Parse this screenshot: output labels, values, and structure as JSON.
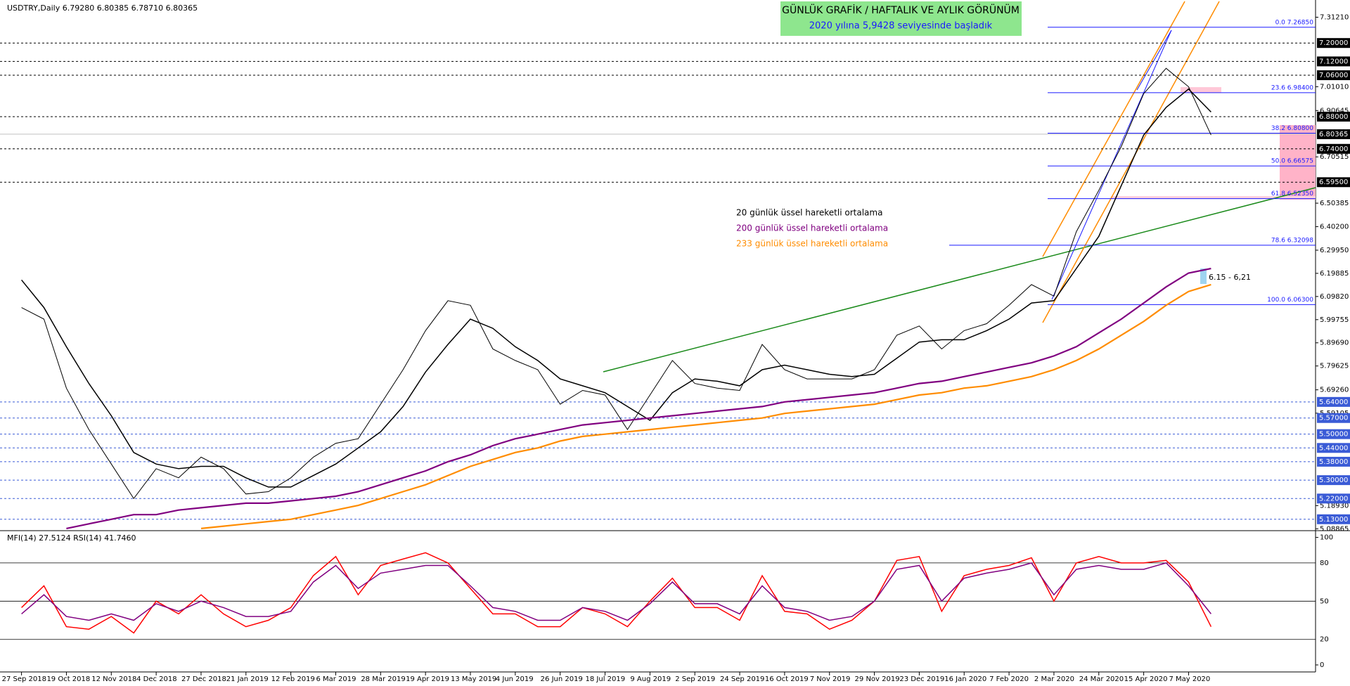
{
  "chart_data": [
    {
      "type": "line",
      "header": "USDTRY,Daily  6.79280 6.80385 6.78710 6.80365",
      "title": "GÜNLÜK GRAFİK / HAFTALIK VE AYLIK GÖRÜNÜM",
      "subtitle": "2020 yılına 5,9428 seviyesinde başladık",
      "annotation": "6.15 - 6,21",
      "categories": [
        "27 Sep 2018",
        null,
        "19 Oct 2018",
        null,
        "12 Nov 2018",
        null,
        "4 Dec 2018",
        null,
        "27 Dec 2018",
        null,
        "21 Jan 2019",
        null,
        "12 Feb 2019",
        null,
        "6 Mar 2019",
        null,
        "28 Mar 2019",
        null,
        "19 Apr 2019",
        null,
        "13 May 2019",
        null,
        "4 Jun 2019",
        null,
        "26 Jun 2019",
        null,
        "18 Jul 2019",
        null,
        "9 Aug 2019",
        null,
        "2 Sep 2019",
        null,
        "24 Sep 2019",
        null,
        "16 Oct 2019",
        null,
        "7 Nov 2019",
        null,
        "29 Nov 2019",
        null,
        "23 Dec 2019",
        null,
        "16 Jan 2020",
        null,
        "7 Feb 2020",
        null,
        "2 Mar 2020",
        null,
        "24 Mar 2020",
        null,
        "15 Apr 2020",
        null,
        "7 May 2020",
        null
      ],
      "price": {
        "color": "#000000",
        "values": [
          6.05,
          6.0,
          5.7,
          5.52,
          5.37,
          5.22,
          5.35,
          5.31,
          5.4,
          5.35,
          5.24,
          5.25,
          5.31,
          5.4,
          5.46,
          5.48,
          5.63,
          5.78,
          5.95,
          6.08,
          6.06,
          5.87,
          5.82,
          5.78,
          5.63,
          5.69,
          5.67,
          5.52,
          5.67,
          5.82,
          5.72,
          5.7,
          5.69,
          5.89,
          5.78,
          5.74,
          5.74,
          5.74,
          5.78,
          5.93,
          5.97,
          5.87,
          5.95,
          5.98,
          6.06,
          6.15,
          6.1,
          6.38,
          6.56,
          6.75,
          6.98,
          7.09,
          7.01,
          6.8
        ]
      },
      "series": [
        {
          "name": "20 günlük üssel hareketli ortalama",
          "color": "#000000",
          "values": [
            6.17,
            6.05,
            5.88,
            5.72,
            5.58,
            5.42,
            5.37,
            5.35,
            5.36,
            5.36,
            5.31,
            5.27,
            5.27,
            5.32,
            5.37,
            5.44,
            5.51,
            5.62,
            5.77,
            5.89,
            6.0,
            5.96,
            5.88,
            5.82,
            5.74,
            5.71,
            5.68,
            5.62,
            5.56,
            5.68,
            5.74,
            5.73,
            5.71,
            5.78,
            5.8,
            5.78,
            5.76,
            5.75,
            5.76,
            5.83,
            5.9,
            5.91,
            5.91,
            5.95,
            6.0,
            6.07,
            6.08,
            6.22,
            6.36,
            6.58,
            6.8,
            6.92,
            7.0,
            6.9
          ]
        },
        {
          "name": "200 günlük üssel hareketli ortalama",
          "color": "#800080",
          "values": [
            null,
            null,
            5.09,
            5.11,
            5.13,
            5.15,
            5.15,
            5.17,
            5.18,
            5.19,
            5.2,
            5.2,
            5.21,
            5.22,
            5.23,
            5.25,
            5.28,
            5.31,
            5.34,
            5.38,
            5.41,
            5.45,
            5.48,
            5.5,
            5.52,
            5.54,
            5.55,
            5.56,
            5.57,
            5.58,
            5.59,
            5.6,
            5.61,
            5.62,
            5.64,
            5.65,
            5.66,
            5.67,
            5.68,
            5.7,
            5.72,
            5.73,
            5.75,
            5.77,
            5.79,
            5.81,
            5.84,
            5.88,
            5.94,
            6.0,
            6.07,
            6.14,
            6.2,
            6.22
          ]
        },
        {
          "name": "233 günlük üssel hareketli ortalama",
          "color": "#ff8c00",
          "values": [
            null,
            null,
            null,
            null,
            null,
            null,
            null,
            null,
            5.09,
            5.1,
            5.11,
            5.12,
            5.13,
            5.15,
            5.17,
            5.19,
            5.22,
            5.25,
            5.28,
            5.32,
            5.36,
            5.39,
            5.42,
            5.44,
            5.47,
            5.49,
            5.5,
            5.51,
            5.52,
            5.53,
            5.54,
            5.55,
            5.56,
            5.57,
            5.59,
            5.6,
            5.61,
            5.62,
            5.63,
            5.65,
            5.67,
            5.68,
            5.7,
            5.71,
            5.73,
            5.75,
            5.78,
            5.82,
            5.87,
            5.93,
            5.99,
            6.06,
            6.12,
            6.15
          ]
        }
      ],
      "ylim": [
        5.08865,
        7.3121
      ],
      "yticks": [
        {
          "value": 7.3121,
          "label": "7.31210"
        },
        {
          "value": 7.0101,
          "label": "7.01010"
        },
        {
          "value": 6.90645,
          "label": "6.90645"
        },
        {
          "value": 6.70515,
          "label": "6.70515"
        },
        {
          "value": 6.50385,
          "label": "6.50385"
        },
        {
          "value": 6.402,
          "label": "6.40200"
        },
        {
          "value": 6.2995,
          "label": "6.29950"
        },
        {
          "value": 6.19885,
          "label": "6.19885"
        },
        {
          "value": 6.0982,
          "label": "6.09820"
        },
        {
          "value": 5.99755,
          "label": "5.99755"
        },
        {
          "value": 5.8969,
          "label": "5.89690"
        },
        {
          "value": 5.79625,
          "label": "5.79625"
        },
        {
          "value": 5.6926,
          "label": "5.69260"
        },
        {
          "value": 5.59105,
          "label": "5.59105"
        },
        {
          "value": 5.1893,
          "label": "5.18930"
        },
        {
          "value": 5.08865,
          "label": "5.08865"
        }
      ],
      "last_price": {
        "value": 6.80365,
        "label": "6.80365"
      },
      "level_groups": [
        {
          "color": "#000000",
          "levels": [
            {
              "value": 7.2,
              "label": "7.20000"
            },
            {
              "value": 7.12,
              "label": "7.12000"
            },
            {
              "value": 7.06,
              "label": "7.06000"
            },
            {
              "value": 6.88,
              "label": "6.88000"
            },
            {
              "value": 6.74,
              "label": "6.74000"
            },
            {
              "value": 6.595,
              "label": "6.59500"
            }
          ]
        },
        {
          "color": "#3a5bd6",
          "levels": [
            {
              "value": 5.64,
              "label": "5.64000"
            },
            {
              "value": 5.57,
              "label": "5.57000"
            },
            {
              "value": 5.5,
              "label": "5.50000"
            },
            {
              "value": 5.44,
              "label": "5.44000"
            },
            {
              "value": 5.38,
              "label": "5.38000"
            },
            {
              "value": 5.3,
              "label": "5.30000"
            },
            {
              "value": 5.22,
              "label": "5.22000"
            },
            {
              "value": 5.13,
              "label": "5.13000"
            }
          ]
        }
      ],
      "fibonacci": {
        "color": "#1a1aff",
        "levels": [
          {
            "value": 7.2685,
            "label": "0.0 7.26850"
          },
          {
            "value": 6.984,
            "label": "23.6 6.98400"
          },
          {
            "value": 6.808,
            "label": "38.2 6.80800"
          },
          {
            "value": 6.66575,
            "label": "50.0 6.66575"
          },
          {
            "value": 6.5235,
            "label": "61.8 6.52350"
          },
          {
            "value": 6.32098,
            "label": "78.6 6.32098"
          },
          {
            "value": 6.063,
            "label": "100.0 6.06300"
          }
        ]
      }
    },
    {
      "type": "line",
      "title": "MFI(14) 27.5124  RSI(14) 41.7460",
      "series": [
        {
          "color": "#ff0000",
          "values": [
            45,
            62,
            30,
            28,
            38,
            25,
            50,
            40,
            55,
            40,
            30,
            35,
            45,
            70,
            85,
            55,
            78,
            83,
            88,
            80,
            60,
            40,
            40,
            30,
            30,
            45,
            40,
            30,
            50,
            68,
            45,
            45,
            35,
            70,
            42,
            40,
            28,
            35,
            50,
            82,
            85,
            42,
            70,
            75,
            78,
            84,
            50,
            80,
            85,
            80,
            80,
            82,
            65,
            30
          ]
        },
        {
          "color": "#800080",
          "values": [
            40,
            55,
            38,
            35,
            40,
            35,
            48,
            42,
            50,
            45,
            38,
            38,
            42,
            65,
            78,
            60,
            72,
            75,
            78,
            78,
            62,
            45,
            42,
            35,
            35,
            45,
            42,
            35,
            48,
            65,
            48,
            48,
            40,
            62,
            45,
            42,
            35,
            38,
            50,
            75,
            78,
            50,
            68,
            72,
            75,
            80,
            55,
            75,
            78,
            75,
            75,
            80,
            62,
            40
          ]
        }
      ],
      "ylim": [
        0,
        100
      ],
      "yticks": [
        0,
        20,
        50,
        80,
        100
      ],
      "grid": true
    }
  ]
}
